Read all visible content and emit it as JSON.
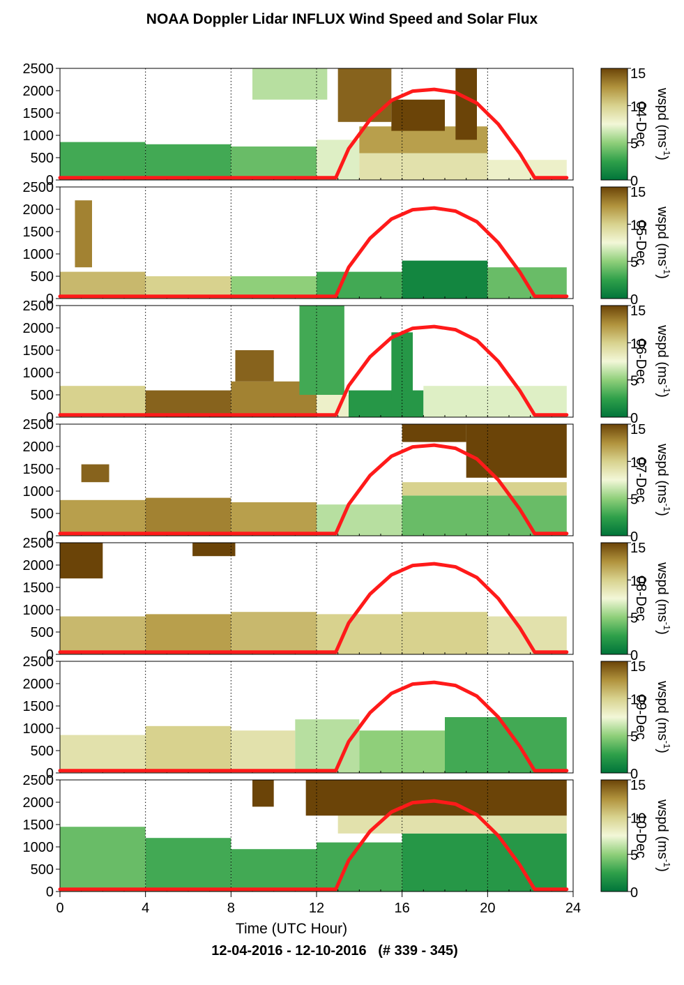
{
  "title": "NOAA Doppler Lidar INFLUX Wind Speed and Solar Flux",
  "footer": "12-04-2016 - 12-10-2016   (# 339 - 345)",
  "colors": {
    "solar_curve": "#ff1a1a",
    "colormap": [
      "#00743a",
      "#2fa04a",
      "#8fcf7a",
      "#f2f7d8",
      "#d8d28e",
      "#b0923c",
      "#6b4408"
    ]
  },
  "chart_data": {
    "type": "heatmap",
    "xlabel": "Time (UTC Hour)",
    "x_ticks": [
      0,
      4,
      8,
      12,
      16,
      20,
      24
    ],
    "xlim": [
      0,
      24
    ],
    "ylim": [
      0,
      2500
    ],
    "y_ticks": [
      0,
      500,
      1000,
      1500,
      2000,
      2500
    ],
    "grid": "dotted vertical lines every 4 hours",
    "colorbar": {
      "label": "wspd (ms",
      "label_sup": "-1",
      "label_close": ")",
      "ticks": [
        0,
        5,
        10,
        15
      ],
      "range": [
        0,
        15
      ]
    },
    "solar_flux_curve": {
      "description_units": "scaled to height axis",
      "points": [
        [
          0,
          50
        ],
        [
          12.9,
          50
        ],
        [
          13.5,
          700
        ],
        [
          14.5,
          1350
        ],
        [
          15.5,
          1780
        ],
        [
          16.5,
          1990
        ],
        [
          17.5,
          2030
        ],
        [
          18.5,
          1960
        ],
        [
          19.5,
          1720
        ],
        [
          20.5,
          1250
        ],
        [
          21.5,
          600
        ],
        [
          22.2,
          50
        ],
        [
          23.7,
          50
        ]
      ]
    },
    "panels": [
      {
        "date": "04-Dec",
        "cells": [
          {
            "t0": 0,
            "t1": 4,
            "h0": 0,
            "h1": 850,
            "w": 3
          },
          {
            "t0": 4,
            "t1": 8,
            "h0": 0,
            "h1": 800,
            "w": 3
          },
          {
            "t0": 8,
            "t1": 12,
            "h0": 0,
            "h1": 750,
            "w": 4
          },
          {
            "t0": 12,
            "t1": 14,
            "h0": 0,
            "h1": 900,
            "w": 7
          },
          {
            "t0": 14,
            "t1": 20,
            "h0": 0,
            "h1": 600,
            "w": 9
          },
          {
            "t0": 14,
            "t1": 20,
            "h0": 600,
            "h1": 1200,
            "w": 12
          },
          {
            "t0": 20,
            "t1": 23.7,
            "h0": 0,
            "h1": 450,
            "w": 8
          },
          {
            "t0": 9,
            "t1": 12.5,
            "h0": 1800,
            "h1": 2500,
            "w": 6
          },
          {
            "t0": 13,
            "t1": 15.5,
            "h0": 1300,
            "h1": 2500,
            "w": 14
          },
          {
            "t0": 15.5,
            "t1": 18,
            "h0": 1100,
            "h1": 1800,
            "w": 15
          },
          {
            "t0": 18.5,
            "t1": 19.5,
            "h0": 900,
            "h1": 2500,
            "w": 15
          }
        ]
      },
      {
        "date": "05-Dec",
        "cells": [
          {
            "t0": 0,
            "t1": 4,
            "h0": 0,
            "h1": 600,
            "w": 11
          },
          {
            "t0": 4,
            "t1": 8,
            "h0": 0,
            "h1": 500,
            "w": 10
          },
          {
            "t0": 8,
            "t1": 12,
            "h0": 0,
            "h1": 500,
            "w": 5
          },
          {
            "t0": 12,
            "t1": 16,
            "h0": 0,
            "h1": 600,
            "w": 3
          },
          {
            "t0": 16,
            "t1": 20,
            "h0": 0,
            "h1": 850,
            "w": 1
          },
          {
            "t0": 20,
            "t1": 23.7,
            "h0": 0,
            "h1": 700,
            "w": 4
          },
          {
            "t0": 0.7,
            "t1": 1.5,
            "h0": 700,
            "h1": 2200,
            "w": 13
          }
        ]
      },
      {
        "date": "06-Dec",
        "cells": [
          {
            "t0": 0,
            "t1": 4,
            "h0": 0,
            "h1": 700,
            "w": 10
          },
          {
            "t0": 4,
            "t1": 8,
            "h0": 0,
            "h1": 600,
            "w": 14
          },
          {
            "t0": 8,
            "t1": 12,
            "h0": 0,
            "h1": 800,
            "w": 13
          },
          {
            "t0": 12,
            "t1": 13.5,
            "h0": 0,
            "h1": 500,
            "w": 8
          },
          {
            "t0": 13.5,
            "t1": 17,
            "h0": 0,
            "h1": 600,
            "w": 2
          },
          {
            "t0": 17,
            "t1": 23.7,
            "h0": 0,
            "h1": 700,
            "w": 7
          },
          {
            "t0": 11.2,
            "t1": 13.3,
            "h0": 500,
            "h1": 2500,
            "w": 3
          },
          {
            "t0": 15.5,
            "t1": 16.5,
            "h0": 400,
            "h1": 1900,
            "w": 2
          },
          {
            "t0": 8.2,
            "t1": 10,
            "h0": 800,
            "h1": 1500,
            "w": 14
          }
        ]
      },
      {
        "date": "07-Dec",
        "cells": [
          {
            "t0": 0,
            "t1": 4,
            "h0": 0,
            "h1": 800,
            "w": 12
          },
          {
            "t0": 4,
            "t1": 8,
            "h0": 0,
            "h1": 850,
            "w": 13
          },
          {
            "t0": 8,
            "t1": 12,
            "h0": 0,
            "h1": 750,
            "w": 12
          },
          {
            "t0": 12,
            "t1": 16,
            "h0": 0,
            "h1": 700,
            "w": 6
          },
          {
            "t0": 16,
            "t1": 23.7,
            "h0": 0,
            "h1": 900,
            "w": 4
          },
          {
            "t0": 16,
            "t1": 23.7,
            "h0": 900,
            "h1": 1200,
            "w": 10
          },
          {
            "t0": 19,
            "t1": 23.7,
            "h0": 1300,
            "h1": 2500,
            "w": 15
          },
          {
            "t0": 16,
            "t1": 19,
            "h0": 2100,
            "h1": 2500,
            "w": 15
          },
          {
            "t0": 1,
            "t1": 2.3,
            "h0": 1200,
            "h1": 1600,
            "w": 14
          }
        ]
      },
      {
        "date": "08-Dec",
        "cells": [
          {
            "t0": 0,
            "t1": 4,
            "h0": 0,
            "h1": 850,
            "w": 11
          },
          {
            "t0": 4,
            "t1": 8,
            "h0": 0,
            "h1": 900,
            "w": 12
          },
          {
            "t0": 8,
            "t1": 12,
            "h0": 0,
            "h1": 950,
            "w": 11
          },
          {
            "t0": 12,
            "t1": 16,
            "h0": 0,
            "h1": 900,
            "w": 10
          },
          {
            "t0": 16,
            "t1": 20,
            "h0": 0,
            "h1": 950,
            "w": 10
          },
          {
            "t0": 20,
            "t1": 23.7,
            "h0": 0,
            "h1": 850,
            "w": 9
          },
          {
            "t0": 0,
            "t1": 2,
            "h0": 1700,
            "h1": 2500,
            "w": 15
          },
          {
            "t0": 6.2,
            "t1": 8.2,
            "h0": 2200,
            "h1": 2500,
            "w": 15
          }
        ]
      },
      {
        "date": "09-Dec",
        "cells": [
          {
            "t0": 0,
            "t1": 4,
            "h0": 0,
            "h1": 850,
            "w": 9
          },
          {
            "t0": 4,
            "t1": 8,
            "h0": 0,
            "h1": 1050,
            "w": 10
          },
          {
            "t0": 8,
            "t1": 11,
            "h0": 0,
            "h1": 950,
            "w": 9
          },
          {
            "t0": 11,
            "t1": 14,
            "h0": 0,
            "h1": 1200,
            "w": 6
          },
          {
            "t0": 14,
            "t1": 18,
            "h0": 0,
            "h1": 950,
            "w": 5
          },
          {
            "t0": 18,
            "t1": 23.7,
            "h0": 0,
            "h1": 1250,
            "w": 3
          }
        ]
      },
      {
        "date": "10-Dec",
        "cells": [
          {
            "t0": 0,
            "t1": 4,
            "h0": 0,
            "h1": 1450,
            "w": 4
          },
          {
            "t0": 4,
            "t1": 8,
            "h0": 0,
            "h1": 1200,
            "w": 3
          },
          {
            "t0": 8,
            "t1": 12,
            "h0": 0,
            "h1": 950,
            "w": 3
          },
          {
            "t0": 12,
            "t1": 16,
            "h0": 0,
            "h1": 1100,
            "w": 3
          },
          {
            "t0": 16,
            "t1": 23.7,
            "h0": 0,
            "h1": 1300,
            "w": 2
          },
          {
            "t0": 13,
            "t1": 23.7,
            "h0": 1300,
            "h1": 1700,
            "w": 9
          },
          {
            "t0": 11.5,
            "t1": 23.7,
            "h0": 1700,
            "h1": 2500,
            "w": 15
          },
          {
            "t0": 9,
            "t1": 10,
            "h0": 1900,
            "h1": 2500,
            "w": 15
          }
        ]
      }
    ]
  }
}
